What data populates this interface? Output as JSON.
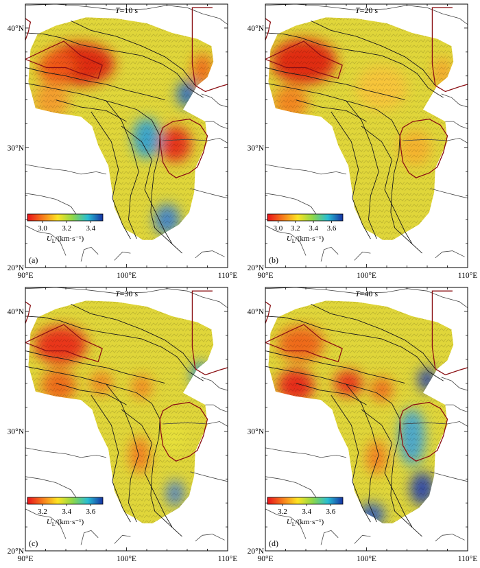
{
  "figure": {
    "panels": [
      {
        "id": "a",
        "letter": "(a)",
        "period_label": "T=10 s",
        "colorbar": {
          "ticks": [
            "3.0",
            "3.2",
            "3.4"
          ],
          "unit_label": "U_L/(km·s⁻¹)",
          "colors": [
            "#e8121b",
            "#f67a1c",
            "#fde323",
            "#8dd74a",
            "#28bdd3",
            "#1532a3"
          ]
        },
        "blobs": [
          {
            "lon": 95.3,
            "lat": 37.0,
            "rlon": 3.5,
            "rlat": 1.8,
            "color": "#dd1c0e"
          },
          {
            "lon": 93.0,
            "lat": 36.7,
            "rlon": 1.8,
            "rlat": 1.4,
            "color": "#f15a12"
          },
          {
            "lon": 104.8,
            "lat": 30.3,
            "rlon": 1.6,
            "rlat": 1.5,
            "color": "#e52617"
          },
          {
            "lon": 107.5,
            "lat": 36.5,
            "rlon": 1.0,
            "rlat": 1.4,
            "color": "#f0661a"
          },
          {
            "lon": 92.6,
            "lat": 34.0,
            "rlon": 1.7,
            "rlat": 1.5,
            "color": "#f49a2c"
          },
          {
            "lon": 106.0,
            "lat": 34.5,
            "rlon": 1.0,
            "rlat": 1.1,
            "color": "#1c66c8"
          },
          {
            "lon": 102.0,
            "lat": 30.8,
            "rlon": 1.4,
            "rlat": 1.7,
            "color": "#2a9fd6"
          },
          {
            "lon": 104.0,
            "lat": 24.0,
            "rlon": 1.3,
            "rlat": 1.3,
            "color": "#3a7fce"
          }
        ]
      },
      {
        "id": "b",
        "letter": "(b)",
        "period_label": "T=20 s",
        "colorbar": {
          "ticks": [
            "3.0",
            "3.2",
            "3.4",
            "3.6"
          ],
          "unit_label": "U_L/(km·s⁻¹)",
          "colors": [
            "#e8121b",
            "#f67a1c",
            "#fde323",
            "#8dd74a",
            "#28bdd3",
            "#1532a3"
          ]
        },
        "blobs": [
          {
            "lon": 93.8,
            "lat": 37.2,
            "rlon": 3.2,
            "rlat": 1.9,
            "color": "#e01d10"
          },
          {
            "lon": 92.5,
            "lat": 33.8,
            "rlon": 1.7,
            "rlat": 1.4,
            "color": "#f3801f"
          },
          {
            "lon": 104.8,
            "lat": 30.0,
            "rlon": 1.6,
            "rlat": 1.5,
            "color": "#f6b02d"
          },
          {
            "lon": 107.5,
            "lat": 36.3,
            "rlon": 0.9,
            "rlat": 1.3,
            "color": "#f6a52c"
          },
          {
            "lon": 101.5,
            "lat": 35.0,
            "rlon": 2.5,
            "rlat": 1.8,
            "color": "#f9c33a"
          }
        ]
      },
      {
        "id": "c",
        "letter": "(c)",
        "period_label": "T=30 s",
        "colorbar": {
          "ticks": [
            "3.2",
            "3.4",
            "3.6"
          ],
          "unit_label": "U_L/(km·s⁻¹)",
          "colors": [
            "#e8121b",
            "#f67a1c",
            "#fde323",
            "#8dd74a",
            "#28bdd3",
            "#1532a3"
          ]
        },
        "blobs": [
          {
            "lon": 93.5,
            "lat": 37.2,
            "rlon": 2.6,
            "rlat": 1.6,
            "color": "#e92814"
          },
          {
            "lon": 93.3,
            "lat": 33.8,
            "rlon": 1.7,
            "rlat": 1.4,
            "color": "#ef6418"
          },
          {
            "lon": 97.5,
            "lat": 34.0,
            "rlon": 1.1,
            "rlat": 1.0,
            "color": "#f2821e"
          },
          {
            "lon": 101.5,
            "lat": 33.7,
            "rlon": 1.0,
            "rlat": 1.0,
            "color": "#f3861f"
          },
          {
            "lon": 101.3,
            "lat": 28.0,
            "rlon": 1.0,
            "rlat": 1.5,
            "color": "#f47a1e"
          },
          {
            "lon": 104.5,
            "lat": 29.5,
            "rlon": 1.4,
            "rlat": 1.4,
            "color": "#e7e13b"
          },
          {
            "lon": 107.3,
            "lat": 34.6,
            "rlon": 0.9,
            "rlat": 1.2,
            "color": "#2e8fd0"
          },
          {
            "lon": 104.8,
            "lat": 24.8,
            "rlon": 0.9,
            "rlat": 1.1,
            "color": "#4c7fc8"
          }
        ]
      },
      {
        "id": "d",
        "letter": "(d)",
        "period_label": "T=40 s",
        "colorbar": {
          "ticks": [
            "3.2",
            "3.4",
            "3.6"
          ],
          "unit_label": "U_L/(km·s⁻¹)",
          "colors": [
            "#e8121b",
            "#f67a1c",
            "#fde323",
            "#8dd74a",
            "#28bdd3",
            "#1532a3"
          ]
        },
        "blobs": [
          {
            "lon": 93.0,
            "lat": 33.8,
            "rlon": 1.8,
            "rlat": 1.4,
            "color": "#e61f14"
          },
          {
            "lon": 98.2,
            "lat": 34.0,
            "rlon": 1.4,
            "rlat": 1.1,
            "color": "#e92a16"
          },
          {
            "lon": 93.5,
            "lat": 37.3,
            "rlon": 2.3,
            "rlat": 1.5,
            "color": "#f06218"
          },
          {
            "lon": 101.5,
            "lat": 33.5,
            "rlon": 1.1,
            "rlat": 1.0,
            "color": "#f0681a"
          },
          {
            "lon": 101.0,
            "lat": 27.8,
            "rlon": 1.0,
            "rlat": 1.4,
            "color": "#f47b1f"
          },
          {
            "lon": 104.5,
            "lat": 29.5,
            "rlon": 1.3,
            "rlat": 2.4,
            "color": "#3fa4d6"
          },
          {
            "lon": 105.5,
            "lat": 25.2,
            "rlon": 1.2,
            "rlat": 1.4,
            "color": "#243fae"
          },
          {
            "lon": 100.5,
            "lat": 23.0,
            "rlon": 1.3,
            "rlat": 1.0,
            "color": "#2b58bd"
          },
          {
            "lon": 106.0,
            "lat": 34.3,
            "rlon": 0.9,
            "rlat": 1.0,
            "color": "#243fae"
          }
        ]
      }
    ],
    "lon_ticks": [
      "90°E",
      "100°E",
      "110°E"
    ],
    "lat_ticks": [
      "20°N",
      "30°N",
      "40°N"
    ],
    "base_fill": "#e0d63a"
  }
}
